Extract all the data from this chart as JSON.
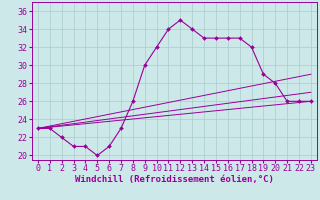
{
  "xlabel": "Windchill (Refroidissement éolien,°C)",
  "background_color": "#cce8e8",
  "grid_color": "#aacccc",
  "line_color": "#990099",
  "xlim": [
    -0.5,
    23.5
  ],
  "ylim": [
    19.5,
    37
  ],
  "yticks": [
    20,
    22,
    24,
    26,
    28,
    30,
    32,
    34,
    36
  ],
  "xticks": [
    0,
    1,
    2,
    3,
    4,
    5,
    6,
    7,
    8,
    9,
    10,
    11,
    12,
    13,
    14,
    15,
    16,
    17,
    18,
    19,
    20,
    21,
    22,
    23
  ],
  "curve_x": [
    0,
    1,
    2,
    3,
    4,
    5,
    6,
    7,
    8,
    9,
    10,
    11,
    12,
    13,
    14,
    15,
    16,
    17,
    18,
    19,
    20,
    21,
    22,
    23
  ],
  "curve_y": [
    23,
    23,
    22,
    21,
    21,
    20,
    21,
    23,
    26,
    30,
    32,
    34,
    35,
    34,
    33,
    33,
    33,
    33,
    32,
    29,
    28,
    26,
    26,
    26
  ],
  "line1_x": [
    0,
    23
  ],
  "line1_y": [
    23,
    26
  ],
  "line2_x": [
    0,
    23
  ],
  "line2_y": [
    23,
    27
  ],
  "line3_x": [
    0,
    23
  ],
  "line3_y": [
    23,
    29
  ],
  "xlabel_fontsize": 6.5,
  "tick_fontsize": 6.0
}
